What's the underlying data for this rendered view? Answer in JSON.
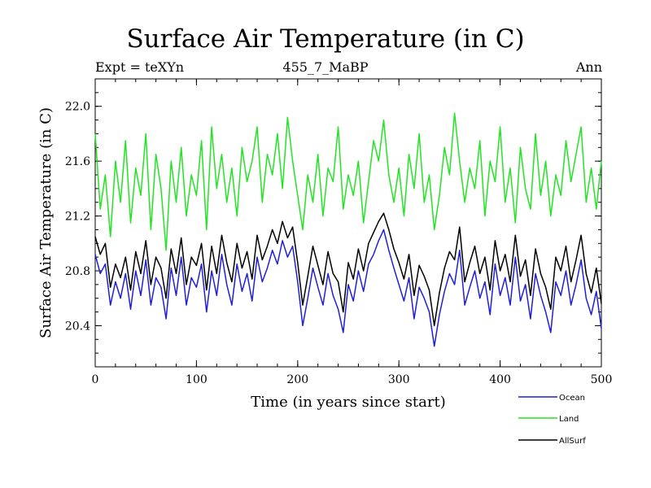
{
  "chart_data": {
    "type": "line",
    "title": "Surface Air Temperature (in C)",
    "subtitle_left": "Expt = teXYn",
    "subtitle_center": "455_7_MaBP",
    "subtitle_right": "Ann",
    "xlabel": "Time (in years since start)",
    "ylabel": "Surface Air Temperature (in C)",
    "xlim": [
      0,
      500
    ],
    "ylim": [
      20.1,
      22.2
    ],
    "xticks": [
      0,
      100,
      200,
      300,
      400,
      500
    ],
    "yticks": [
      20.4,
      20.8,
      21.2,
      21.6,
      22.0
    ],
    "ytick_labels": [
      "20.4",
      "20.8",
      "21.2",
      "21.6",
      "22.0"
    ],
    "legend_position": "bottom-right",
    "series": [
      {
        "name": "Ocean",
        "color": "#1f1fd8",
        "x": [
          0,
          5,
          10,
          15,
          20,
          25,
          30,
          35,
          40,
          45,
          50,
          55,
          60,
          65,
          70,
          75,
          80,
          85,
          90,
          95,
          100,
          105,
          110,
          115,
          120,
          125,
          130,
          135,
          140,
          145,
          150,
          155,
          160,
          165,
          170,
          175,
          180,
          185,
          190,
          195,
          200,
          205,
          210,
          215,
          220,
          225,
          230,
          235,
          240,
          245,
          250,
          255,
          260,
          265,
          270,
          275,
          280,
          285,
          290,
          295,
          300,
          305,
          310,
          315,
          320,
          325,
          330,
          335,
          340,
          345,
          350,
          355,
          360,
          365,
          370,
          375,
          380,
          385,
          390,
          395,
          400,
          405,
          410,
          415,
          420,
          425,
          430,
          435,
          440,
          445,
          450,
          455,
          460,
          465,
          470,
          475,
          480,
          485,
          490,
          495,
          500
        ],
        "y": [
          20.92,
          20.78,
          20.85,
          20.55,
          20.72,
          20.6,
          20.78,
          20.52,
          20.8,
          20.62,
          20.88,
          20.55,
          20.75,
          20.68,
          20.45,
          20.82,
          20.62,
          20.9,
          20.55,
          20.75,
          20.68,
          20.85,
          20.5,
          20.8,
          20.62,
          20.92,
          20.7,
          20.55,
          20.85,
          20.65,
          20.78,
          20.58,
          20.9,
          20.72,
          20.82,
          20.95,
          20.85,
          21.02,
          20.9,
          20.98,
          20.72,
          20.4,
          20.6,
          20.82,
          20.68,
          20.55,
          20.78,
          20.62,
          20.52,
          20.35,
          20.7,
          20.58,
          20.8,
          20.65,
          20.85,
          20.92,
          21.02,
          21.1,
          20.95,
          20.82,
          20.7,
          20.58,
          20.75,
          20.45,
          20.68,
          20.6,
          20.5,
          20.25,
          20.48,
          20.65,
          20.78,
          20.7,
          20.95,
          20.55,
          20.68,
          20.8,
          20.6,
          20.72,
          20.48,
          20.85,
          20.62,
          20.75,
          20.55,
          20.9,
          20.58,
          20.7,
          20.45,
          20.78,
          20.62,
          20.5,
          20.35,
          20.72,
          20.62,
          20.8,
          20.55,
          20.7,
          20.88,
          20.6,
          20.48,
          20.65,
          20.38
        ]
      },
      {
        "name": "Land",
        "color": "#22e422",
        "x": [
          0,
          5,
          10,
          15,
          20,
          25,
          30,
          35,
          40,
          45,
          50,
          55,
          60,
          65,
          70,
          75,
          80,
          85,
          90,
          95,
          100,
          105,
          110,
          115,
          120,
          125,
          130,
          135,
          140,
          145,
          150,
          155,
          160,
          165,
          170,
          175,
          180,
          185,
          190,
          195,
          200,
          205,
          210,
          215,
          220,
          225,
          230,
          235,
          240,
          245,
          250,
          255,
          260,
          265,
          270,
          275,
          280,
          285,
          290,
          295,
          300,
          305,
          310,
          315,
          320,
          325,
          330,
          335,
          340,
          345,
          350,
          355,
          360,
          365,
          370,
          375,
          380,
          385,
          390,
          395,
          400,
          405,
          410,
          415,
          420,
          425,
          430,
          435,
          440,
          445,
          450,
          455,
          460,
          465,
          470,
          475,
          480,
          485,
          490,
          495,
          500
        ],
        "y": [
          21.8,
          21.25,
          21.5,
          21.05,
          21.6,
          21.3,
          21.75,
          21.15,
          21.55,
          21.35,
          21.8,
          21.1,
          21.65,
          21.4,
          20.95,
          21.6,
          21.3,
          21.7,
          21.2,
          21.5,
          21.35,
          21.75,
          21.1,
          21.85,
          21.4,
          21.65,
          21.3,
          21.55,
          21.2,
          21.7,
          21.45,
          21.6,
          21.85,
          21.3,
          21.65,
          21.5,
          21.8,
          21.4,
          21.92,
          21.6,
          21.35,
          21.1,
          21.5,
          21.3,
          21.65,
          21.2,
          21.55,
          21.45,
          21.85,
          21.25,
          21.5,
          21.35,
          21.6,
          21.15,
          21.45,
          21.75,
          21.6,
          21.9,
          21.5,
          21.3,
          21.55,
          21.2,
          21.65,
          21.4,
          21.8,
          21.3,
          21.5,
          21.1,
          21.35,
          21.7,
          21.5,
          21.95,
          21.6,
          21.3,
          21.55,
          21.4,
          21.75,
          21.2,
          21.6,
          21.45,
          21.85,
          21.3,
          21.55,
          21.15,
          21.7,
          21.4,
          21.25,
          21.8,
          21.35,
          21.6,
          21.2,
          21.5,
          21.35,
          21.75,
          21.45,
          21.65,
          21.85,
          21.3,
          21.55,
          21.25,
          21.6
        ]
      },
      {
        "name": "AllSurf",
        "color": "#000000",
        "x": [
          0,
          5,
          10,
          15,
          20,
          25,
          30,
          35,
          40,
          45,
          50,
          55,
          60,
          65,
          70,
          75,
          80,
          85,
          90,
          95,
          100,
          105,
          110,
          115,
          120,
          125,
          130,
          135,
          140,
          145,
          150,
          155,
          160,
          165,
          170,
          175,
          180,
          185,
          190,
          195,
          200,
          205,
          210,
          215,
          220,
          225,
          230,
          235,
          240,
          245,
          250,
          255,
          260,
          265,
          270,
          275,
          280,
          285,
          290,
          295,
          300,
          305,
          310,
          315,
          320,
          325,
          330,
          335,
          340,
          345,
          350,
          355,
          360,
          365,
          370,
          375,
          380,
          385,
          390,
          395,
          400,
          405,
          410,
          415,
          420,
          425,
          430,
          435,
          440,
          445,
          450,
          455,
          460,
          465,
          470,
          475,
          480,
          485,
          490,
          495,
          500
        ],
        "y": [
          21.05,
          20.92,
          21.0,
          20.68,
          20.85,
          20.75,
          20.9,
          20.66,
          20.94,
          20.78,
          21.02,
          20.7,
          20.9,
          20.82,
          20.6,
          20.96,
          20.78,
          21.04,
          20.7,
          20.9,
          20.84,
          21.0,
          20.66,
          20.98,
          20.78,
          21.06,
          20.86,
          20.72,
          21.0,
          20.82,
          20.94,
          20.74,
          21.06,
          20.88,
          20.98,
          21.1,
          21.0,
          21.16,
          21.04,
          21.12,
          20.86,
          20.55,
          20.76,
          20.98,
          20.84,
          20.7,
          20.94,
          20.78,
          20.72,
          20.5,
          20.86,
          20.74,
          20.96,
          20.8,
          21.0,
          21.08,
          21.16,
          21.22,
          21.1,
          20.96,
          20.86,
          20.74,
          20.92,
          20.62,
          20.84,
          20.76,
          20.66,
          20.4,
          20.64,
          20.82,
          20.94,
          20.88,
          21.12,
          20.72,
          20.86,
          20.98,
          20.78,
          20.9,
          20.66,
          21.02,
          20.8,
          20.92,
          20.72,
          21.06,
          20.76,
          20.88,
          20.62,
          20.96,
          20.78,
          20.68,
          20.52,
          20.9,
          20.8,
          20.98,
          20.72,
          20.88,
          21.06,
          20.78,
          20.64,
          20.82,
          20.56
        ]
      }
    ]
  }
}
